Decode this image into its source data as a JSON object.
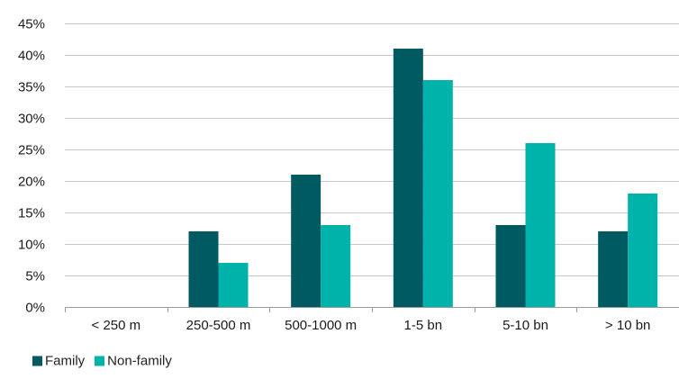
{
  "chart_data": {
    "type": "bar",
    "categories": [
      "< 250 m",
      "250-500 m",
      "500-1000 m",
      "1-5 bn",
      "5-10 bn",
      "> 10 bn"
    ],
    "series": [
      {
        "name": "Family",
        "color": "#005a62",
        "values": [
          0,
          12,
          21,
          41,
          13,
          12
        ]
      },
      {
        "name": "Non-family",
        "color": "#00b3aa",
        "values": [
          0,
          7,
          13,
          36,
          26,
          18
        ]
      }
    ],
    "ylim": [
      0,
      45
    ],
    "yticks": [
      "0%",
      "5%",
      "10%",
      "15%",
      "20%",
      "25%",
      "30%",
      "35%",
      "40%",
      "45%"
    ],
    "title": "",
    "xlabel": "",
    "ylabel": "",
    "grid": true,
    "legend_position": "bottom-left"
  }
}
